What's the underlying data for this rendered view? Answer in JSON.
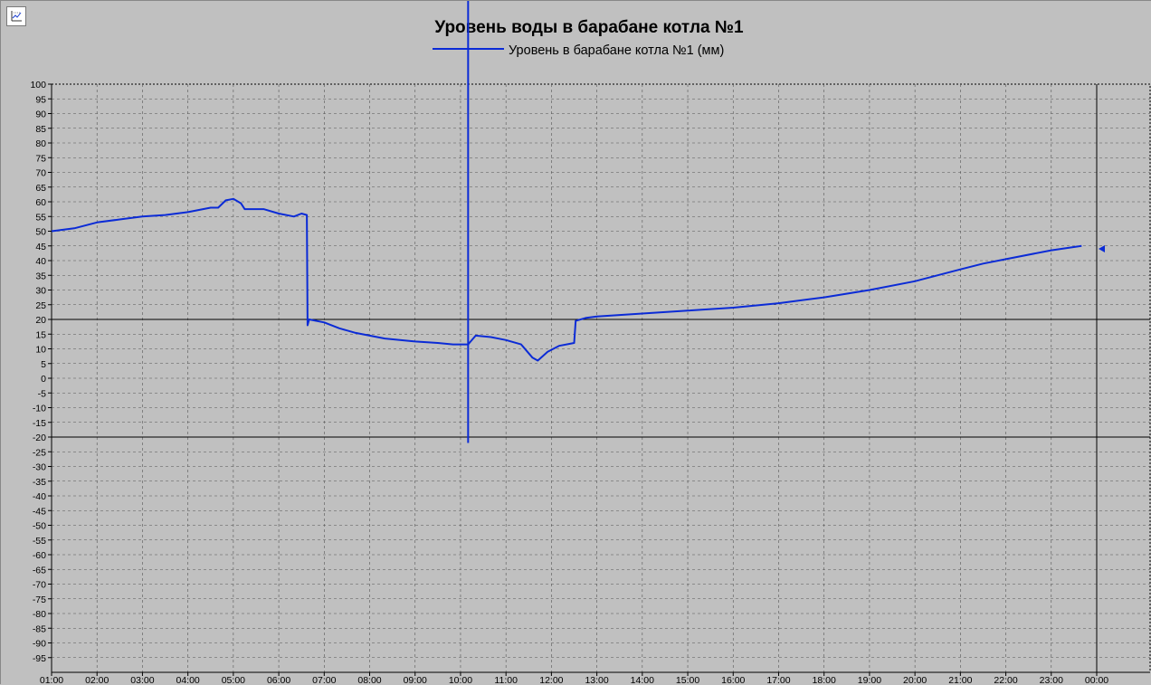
{
  "window": {
    "icon": "chart-settings-icon"
  },
  "chart_data": {
    "type": "line",
    "title": "Уровень воды в барабане котла №1",
    "legend_position": "top-center",
    "grid": true,
    "series": [
      {
        "name": "Уровень в барабане котла №1 (мм)",
        "color": "#0b2bd6",
        "points": [
          [
            "01:00",
            50
          ],
          [
            "01:30",
            51
          ],
          [
            "02:00",
            53
          ],
          [
            "02:30",
            54
          ],
          [
            "03:00",
            55
          ],
          [
            "03:30",
            55.5
          ],
          [
            "04:00",
            56.5
          ],
          [
            "04:20",
            57.5
          ],
          [
            "04:30",
            58
          ],
          [
            "04:40",
            58
          ],
          [
            "04:50",
            60.5
          ],
          [
            "05:00",
            61
          ],
          [
            "05:10",
            59.5
          ],
          [
            "05:15",
            57.5
          ],
          [
            "05:40",
            57.5
          ],
          [
            "06:00",
            56
          ],
          [
            "06:20",
            55
          ],
          [
            "06:30",
            56
          ],
          [
            "06:37",
            55.5
          ],
          [
            "06:38",
            18
          ],
          [
            "06:40",
            20
          ],
          [
            "07:00",
            19
          ],
          [
            "07:20",
            17
          ],
          [
            "07:40",
            15.5
          ],
          [
            "08:00",
            14.5
          ],
          [
            "08:20",
            13.5
          ],
          [
            "08:40",
            13
          ],
          [
            "09:00",
            12.5
          ],
          [
            "09:30",
            12
          ],
          [
            "09:50",
            11.5
          ],
          [
            "10:10",
            11.5
          ],
          [
            "10:20",
            14.5
          ],
          [
            "10:40",
            14
          ],
          [
            "11:00",
            13
          ],
          [
            "11:20",
            11.5
          ],
          [
            "11:35",
            7
          ],
          [
            "11:42",
            6
          ],
          [
            "11:55",
            9
          ],
          [
            "12:10",
            11
          ],
          [
            "12:30",
            12
          ],
          [
            "12:32",
            19.5
          ],
          [
            "12:45",
            20.5
          ],
          [
            "13:00",
            21
          ],
          [
            "14:00",
            22
          ],
          [
            "15:00",
            23
          ],
          [
            "16:00",
            24
          ],
          [
            "17:00",
            25.5
          ],
          [
            "18:00",
            27.5
          ],
          [
            "19:00",
            30
          ],
          [
            "20:00",
            33
          ],
          [
            "21:00",
            37
          ],
          [
            "21:30",
            39
          ],
          [
            "22:00",
            40.5
          ],
          [
            "23:00",
            43.5
          ],
          [
            "23:40",
            45
          ]
        ]
      }
    ],
    "spike": {
      "x": "10:10",
      "y_top": 100,
      "y_bottom": -22,
      "color": "#0b2bd6"
    },
    "limits": [
      20,
      -20
    ],
    "cursor_x": "00:00",
    "end_marker": {
      "x": "00:00",
      "y": 44
    },
    "x_ticks": [
      "01:00",
      "02:00",
      "03:00",
      "04:00",
      "05:00",
      "06:00",
      "07:00",
      "08:00",
      "09:00",
      "10:00",
      "11:00",
      "12:00",
      "13:00",
      "14:00",
      "15:00",
      "16:00",
      "17:00",
      "18:00",
      "19:00",
      "20:00",
      "21:00",
      "22:00",
      "23:00",
      "00:00"
    ],
    "y_ticks": [
      100,
      95,
      90,
      85,
      80,
      75,
      70,
      65,
      60,
      55,
      50,
      45,
      40,
      35,
      30,
      25,
      20,
      15,
      10,
      5,
      0,
      -5,
      -10,
      -15,
      -20,
      -25,
      -30,
      -35,
      -40,
      -45,
      -50,
      -55,
      -60,
      -65,
      -70,
      -75,
      -80,
      -85,
      -90,
      -95
    ],
    "ylim": [
      -100,
      100
    ],
    "xlim": [
      "01:00",
      "00:00"
    ]
  }
}
